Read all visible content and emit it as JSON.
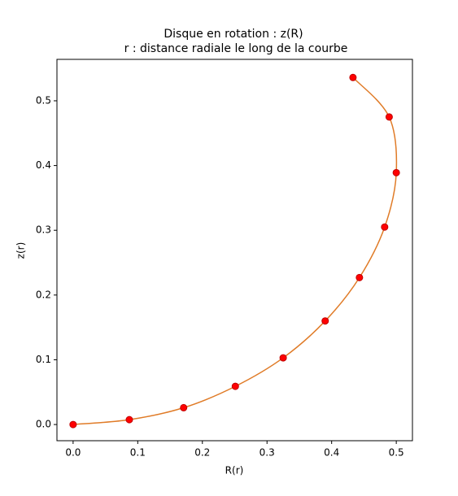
{
  "chart_data": {
    "type": "scatter",
    "title": "Disque en rotation : z(R)",
    "subtitle": "r : distance radiale le long de la courbe",
    "xlabel": "R(r)",
    "ylabel": "z(r)",
    "xlim": [
      -0.025,
      0.525
    ],
    "ylim": [
      -0.025,
      0.564
    ],
    "xticks": [
      {
        "value": 0,
        "label": "0.0"
      },
      0.1,
      0.2,
      0.3,
      0.4,
      0.5
    ],
    "yticks": [
      {
        "value": 0,
        "label": "0.0"
      },
      0.1,
      0.2,
      0.3,
      0.4,
      0.5
    ],
    "series": [
      {
        "type": "line",
        "color": "#e07b27",
        "x": [
          0,
          0.087,
          0.171,
          0.251,
          0.325,
          0.39,
          0.443,
          0.482,
          0.5,
          0.489,
          0.433
        ],
        "values": [
          0,
          0.0075,
          0.026,
          0.059,
          0.103,
          0.16,
          0.227,
          0.305,
          0.389,
          0.475,
          0.536
        ]
      },
      {
        "type": "scatter",
        "color": "#ff0000",
        "x": [
          0,
          0.087,
          0.171,
          0.251,
          0.325,
          0.39,
          0.443,
          0.482,
          0.5,
          0.489,
          0.433
        ],
        "values": [
          0,
          0.0075,
          0.026,
          0.059,
          0.103,
          0.16,
          0.227,
          0.305,
          0.389,
          0.475,
          0.536
        ]
      }
    ]
  }
}
